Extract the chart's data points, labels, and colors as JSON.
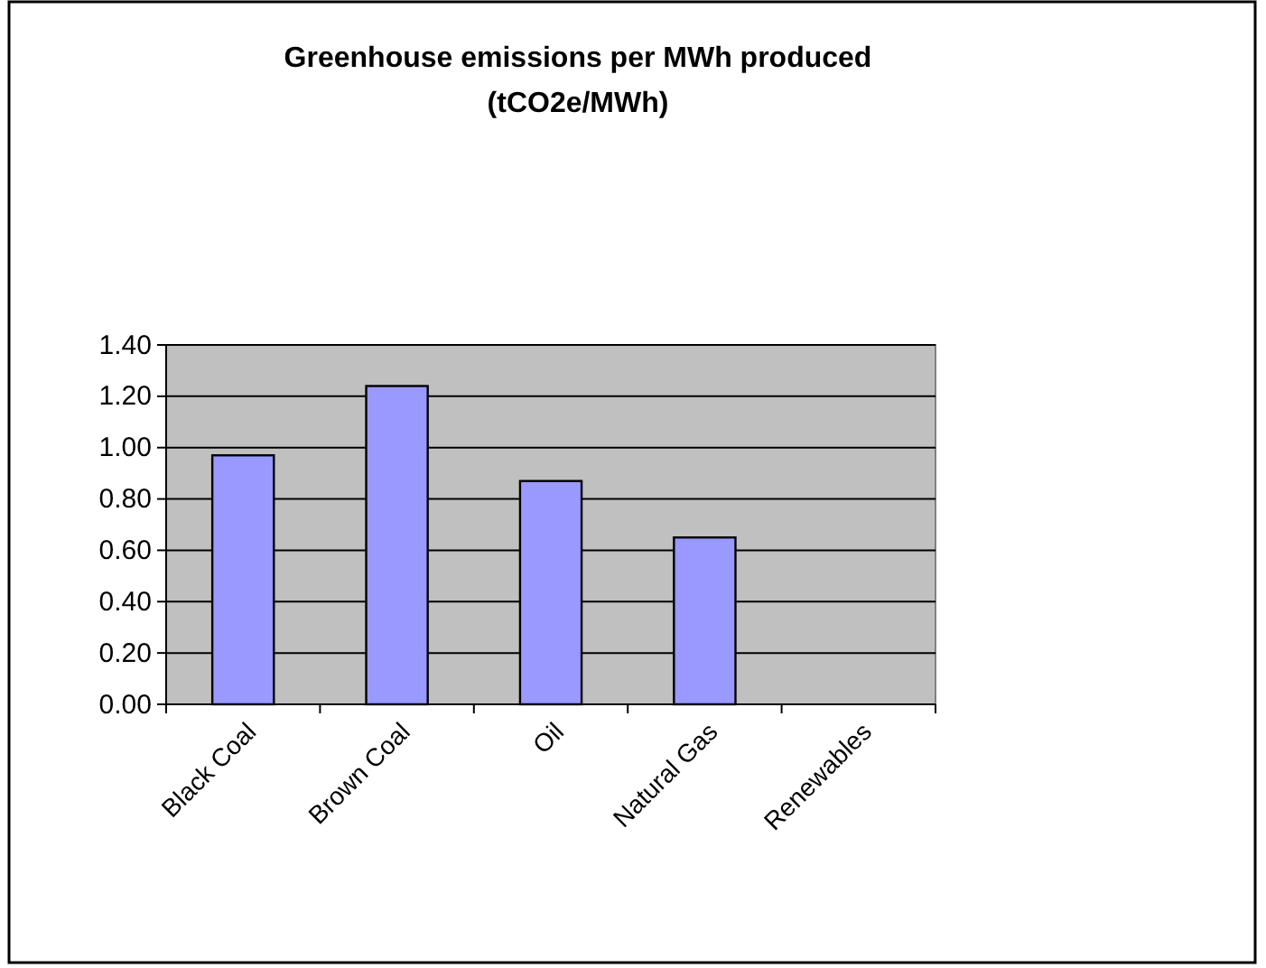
{
  "chart_data": {
    "type": "bar",
    "title": "Greenhouse emissions per MWh produced\n(tCO2e/MWh)",
    "categories": [
      "Black Coal",
      "Brown Coal",
      "Oil",
      "Natural Gas",
      "Renewables"
    ],
    "values": [
      0.97,
      1.24,
      0.87,
      0.65,
      0
    ],
    "color": "#9999ff",
    "ylim": [
      0,
      1.4
    ],
    "yticks": [
      {
        "value": 0,
        "label": "0.00"
      },
      {
        "value": 0.2,
        "label": "0.20"
      },
      {
        "value": 0.4,
        "label": "0.40"
      },
      {
        "value": 0.6,
        "label": "0.60"
      },
      {
        "value": 0.8,
        "label": "0.80"
      },
      {
        "value": 1,
        "label": "1.00"
      },
      {
        "value": 1.2,
        "label": "1.20"
      },
      {
        "value": 1.4,
        "label": "1.40"
      }
    ],
    "grid": "y"
  }
}
